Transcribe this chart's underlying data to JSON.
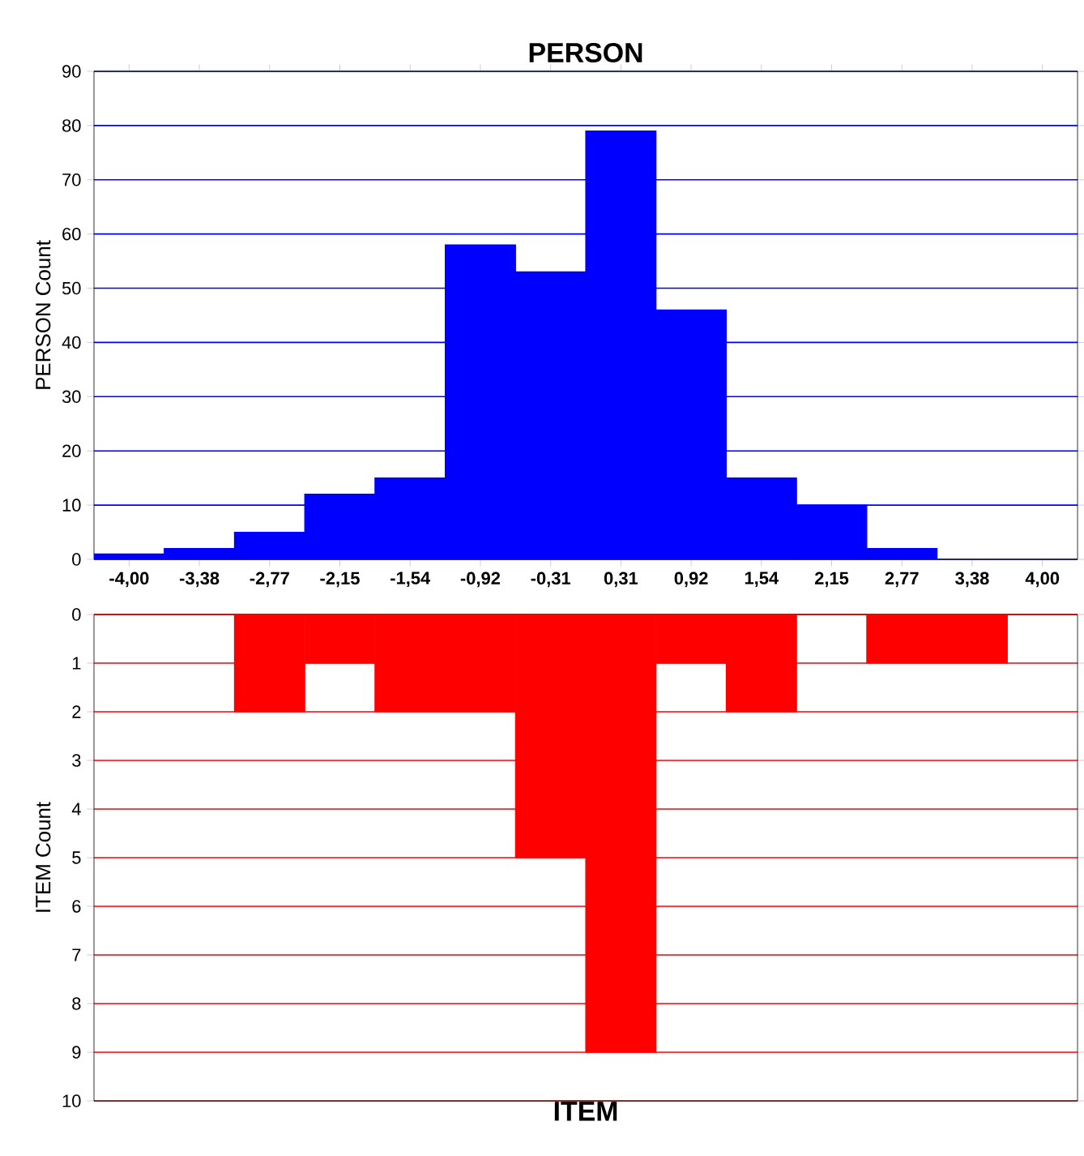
{
  "chart_data": [
    {
      "type": "bar",
      "title": "PERSON",
      "ylabel": "PERSON Count",
      "categories": [
        "-4,00",
        "-3,38",
        "-2,77",
        "-2,15",
        "-1,54",
        "-0,92",
        "-0,31",
        "0,31",
        "0,92",
        "1,54",
        "2,15",
        "2,77",
        "3,38",
        "4,00"
      ],
      "values": [
        1,
        2,
        5,
        12,
        15,
        58,
        53,
        79,
        46,
        15,
        10,
        2,
        0,
        0
      ],
      "color": "#0000ff",
      "ylim": [
        0,
        90
      ],
      "yticks": [
        0,
        10,
        20,
        30,
        40,
        50,
        60,
        70,
        80,
        90
      ],
      "grid": "y"
    },
    {
      "type": "bar",
      "title": "ITEM",
      "ylabel": "ITEM Count",
      "categories": [
        null,
        null,
        null,
        null,
        null,
        null,
        null,
        null,
        null,
        null,
        null,
        null,
        null,
        null
      ],
      "values": [
        0,
        0,
        2,
        1,
        2,
        2,
        5,
        9,
        1,
        2,
        0,
        1,
        1,
        0
      ],
      "color": "#ff0000",
      "ylim": [
        10,
        0
      ],
      "yticks": [
        0,
        1,
        2,
        3,
        4,
        5,
        6,
        7,
        8,
        9,
        10
      ],
      "grid": "y",
      "tick_labels": "y"
    }
  ]
}
